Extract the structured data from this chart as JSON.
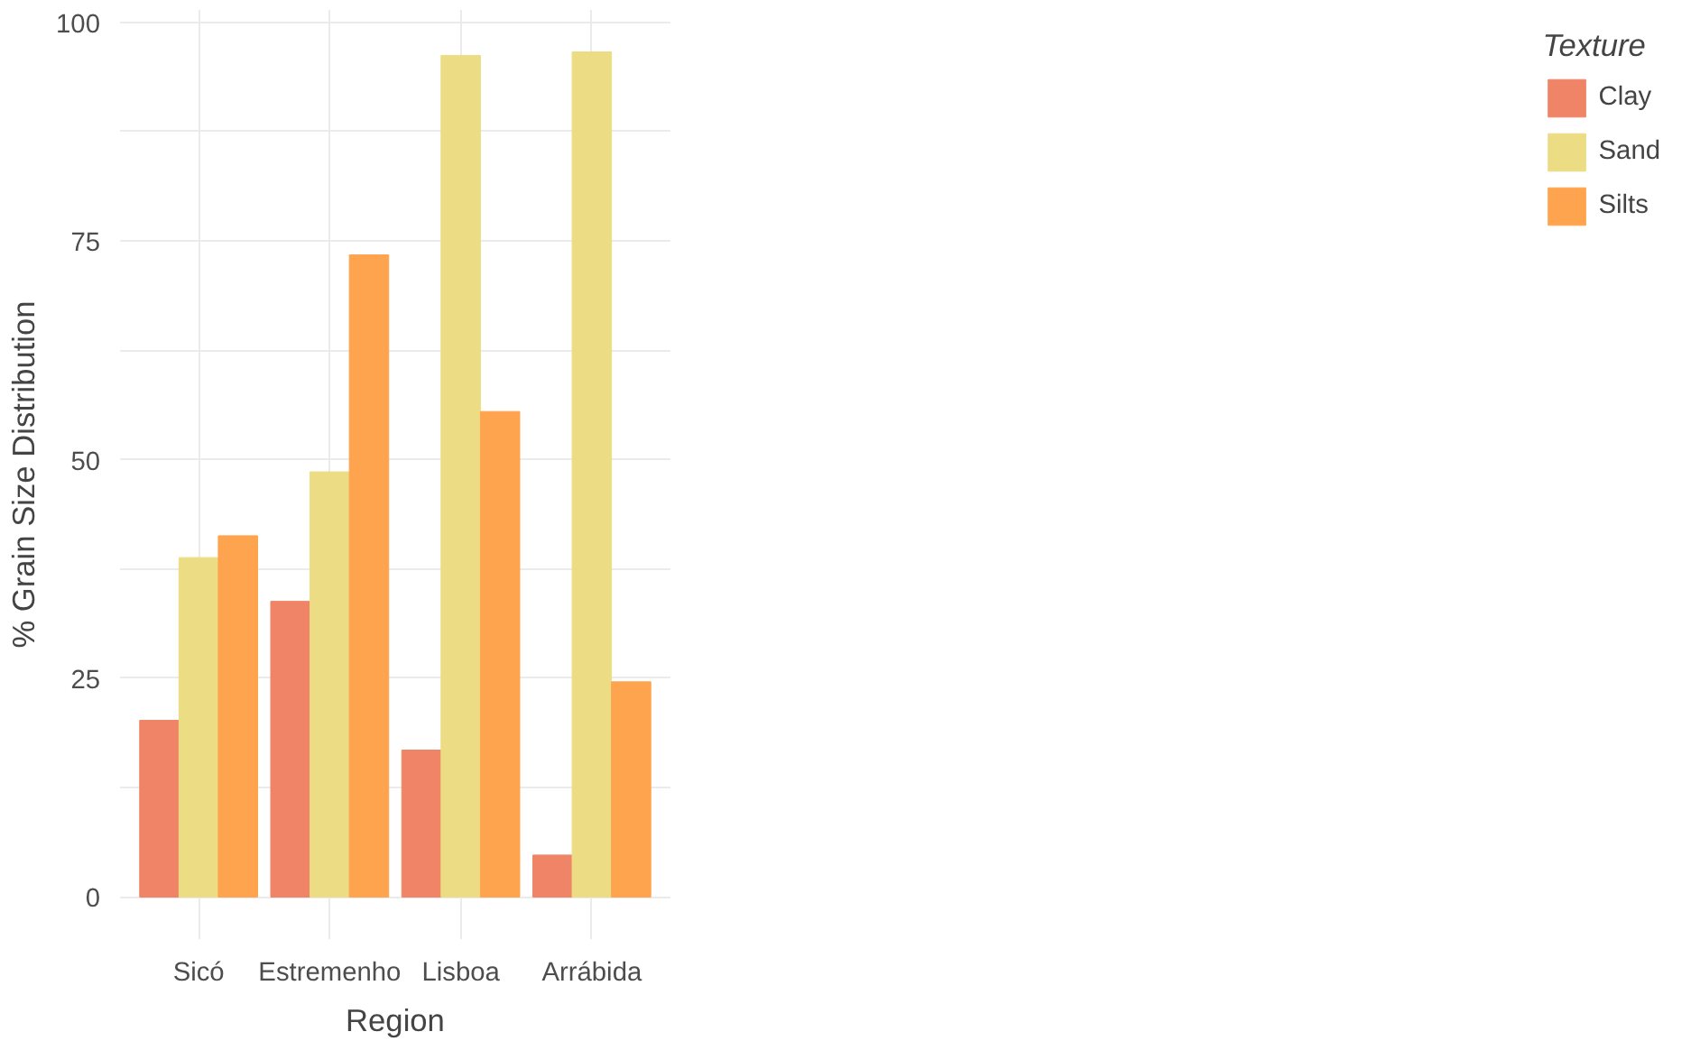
{
  "chart_data": {
    "type": "bar",
    "xlabel": "Region",
    "ylabel": "% Grain Size Distribution",
    "legend_title": "Texture",
    "categories": [
      "Sicó",
      "Estremenho",
      "Lisboa",
      "Arrábida"
    ],
    "series": [
      {
        "name": "Clay",
        "color": "#ef8467",
        "values": [
          20.2,
          33.8,
          16.8,
          4.8
        ]
      },
      {
        "name": "Sand",
        "color": "#ecdc84",
        "values": [
          38.8,
          48.6,
          96.2,
          96.6
        ]
      },
      {
        "name": "Silts",
        "color": "#fea44f",
        "values": [
          41.3,
          73.4,
          55.5,
          24.6
        ]
      }
    ],
    "ylim": [
      -4.8,
      101.4
    ],
    "yticks": [
      0,
      {
        "value": 12.5,
        "label": null
      },
      25,
      {
        "value": 37.5,
        "label": null
      },
      50,
      {
        "value": 62.5,
        "label": null
      },
      75,
      {
        "value": 87.5,
        "label": null
      },
      100
    ],
    "grid": true,
    "legend": "right"
  }
}
